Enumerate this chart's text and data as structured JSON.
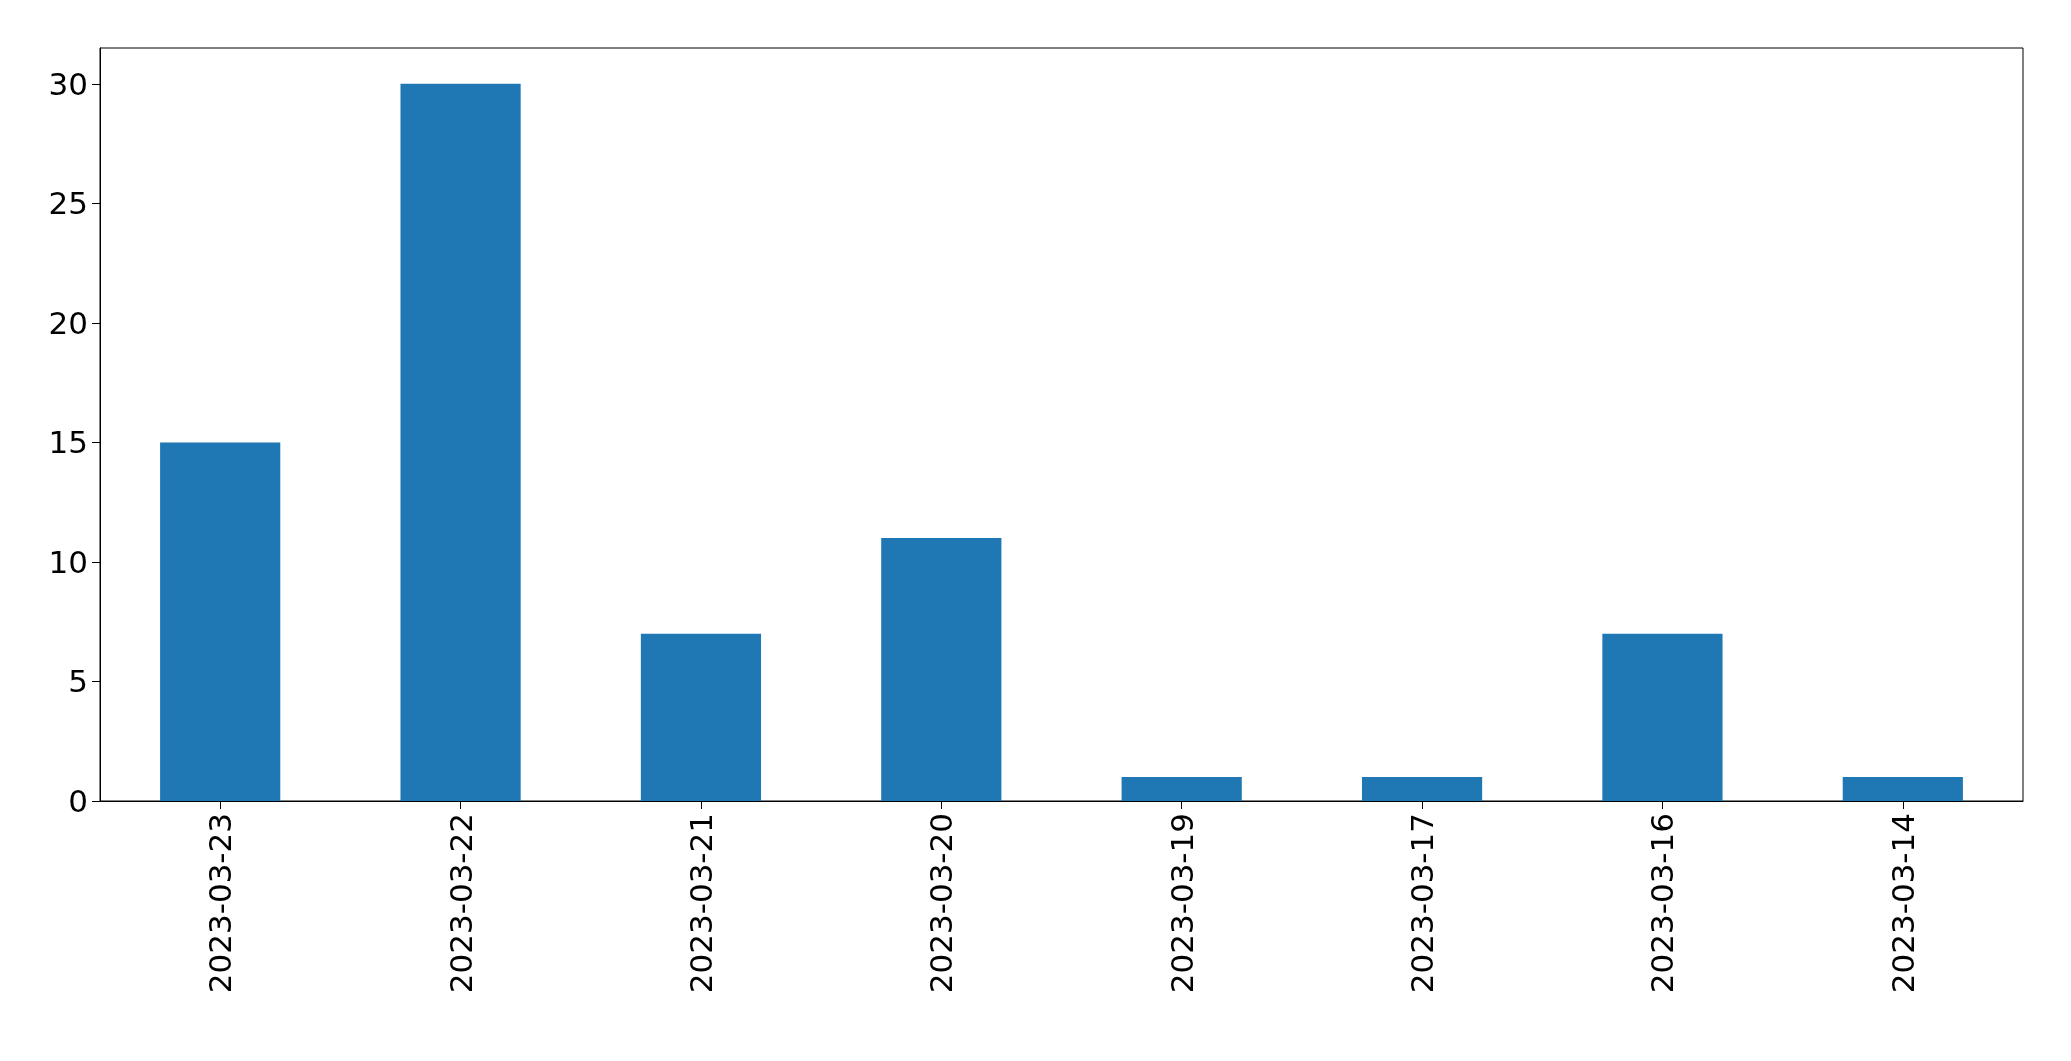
{
  "chart_data": {
    "type": "bar",
    "categories": [
      "2023-03-23",
      "2023-03-22",
      "2023-03-21",
      "2023-03-20",
      "2023-03-19",
      "2023-03-17",
      "2023-03-16",
      "2023-03-14"
    ],
    "values": [
      15,
      30,
      7,
      11,
      1,
      1,
      7,
      1
    ],
    "color": "#1f77b4",
    "ylim": [
      0,
      31.5
    ],
    "yticks": [
      0,
      5,
      10,
      15,
      20,
      25,
      30
    ]
  }
}
